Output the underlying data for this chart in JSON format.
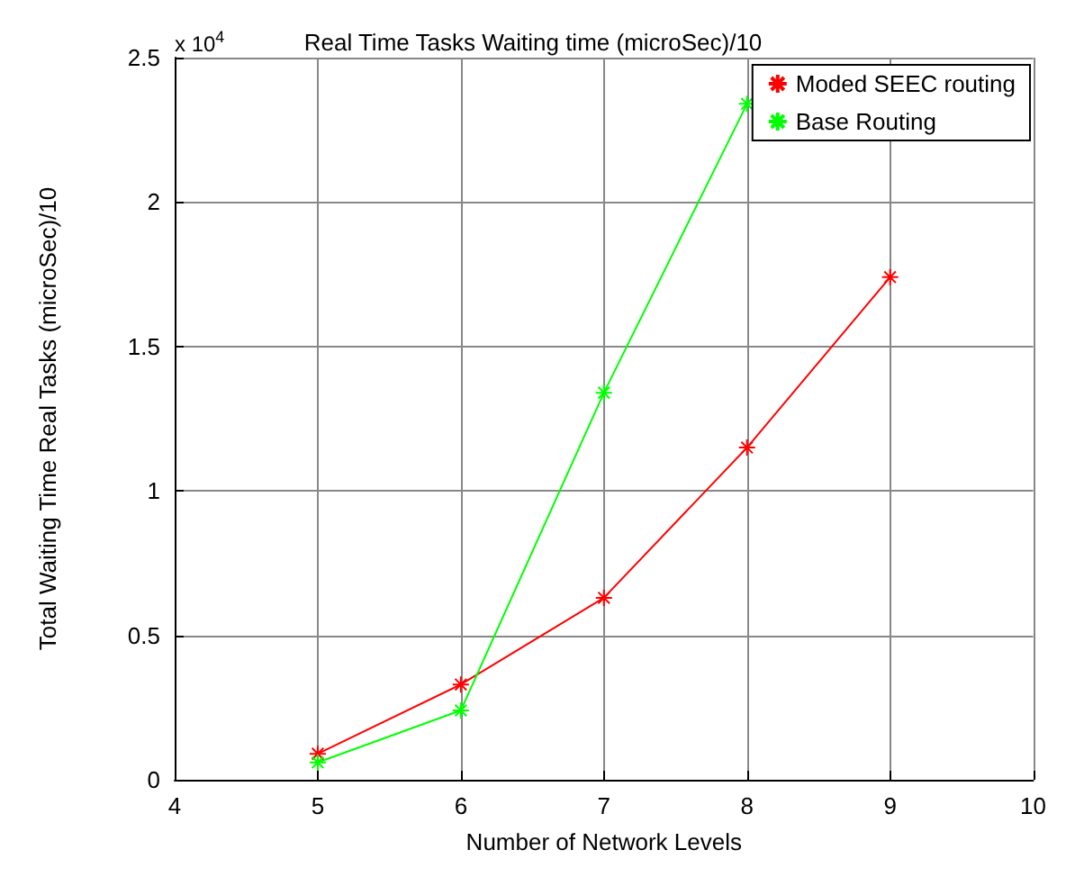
{
  "chart_data": {
    "type": "line",
    "title": "Real Time Tasks Waiting time (microSec)/10",
    "xlabel": "Number of Network Levels",
    "ylabel": "Total Waiting Time Real Tasks (microSec)/10",
    "x": [
      5,
      6,
      7,
      8,
      9
    ],
    "series": [
      {
        "name": "Moded SEEC routing",
        "color": "#ff0000",
        "values": [
          0.09,
          0.33,
          0.63,
          1.15,
          1.74
        ]
      },
      {
        "name": "Base Routing",
        "color": "#00ff00",
        "values": [
          0.06,
          0.24,
          1.34,
          2.34,
          null
        ]
      }
    ],
    "xlim": [
      4,
      10
    ],
    "xticks": [
      4,
      5,
      6,
      7,
      8,
      9,
      10
    ],
    "ylim": [
      0,
      2.5
    ],
    "yticks": [
      0,
      0.5,
      1,
      1.5,
      2,
      2.5
    ],
    "annotations": [
      "x 10$^{4}$"
    ],
    "grid": true,
    "legend": "top right",
    "marker": "cross",
    "line_style": "solid"
  }
}
